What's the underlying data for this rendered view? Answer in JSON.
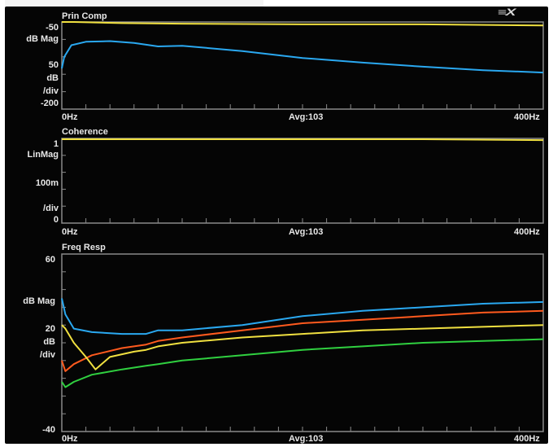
{
  "header": {
    "logo": "≡X"
  },
  "panels": [
    {
      "id": "prin-comp",
      "title": "Prin Comp",
      "y_labels": {
        "top": "-50",
        "unit": "dB Mag",
        "ref": "50",
        "db": "dB",
        "div": "/div",
        "bottom": "-200"
      },
      "x_labels": {
        "left": "0Hz",
        "center": "Avg:103",
        "right": "400Hz"
      }
    },
    {
      "id": "coherence",
      "title": "Coherence",
      "y_labels": {
        "top": "1",
        "unit": "LinMag",
        "ref": "100m",
        "div": "/div",
        "bottom": "0"
      },
      "x_labels": {
        "left": "0Hz",
        "center": "Avg:103",
        "right": "400Hz"
      }
    },
    {
      "id": "freq-resp",
      "title": "Freq Resp",
      "y_labels": {
        "top": "60",
        "unit": "dB Mag",
        "ref": "20",
        "db": "dB",
        "div": "/div",
        "bottom": "-40"
      },
      "x_labels": {
        "left": "0Hz",
        "center": "Avg:103",
        "right": "400Hz"
      }
    }
  ],
  "colors": {
    "grid": "#8a8a8a",
    "yellow": "#f0e040",
    "blue": "#2aa8f0",
    "orange": "#ff5a1e",
    "green": "#30d040",
    "label": "#e8e8e8"
  },
  "chart_data": [
    {
      "type": "line",
      "title": "Prin Comp",
      "xlabel": "",
      "ylabel": "dB Mag",
      "xlim": [
        0,
        400
      ],
      "ylim": [
        -200,
        -50
      ],
      "series": [
        {
          "color": "yellow",
          "x": [
            0,
            10,
            50,
            100,
            200,
            300,
            400
          ],
          "y": [
            -50,
            -50,
            -52,
            -53,
            -54,
            -54,
            -56
          ]
        },
        {
          "color": "blue",
          "x": [
            0,
            2,
            8,
            20,
            40,
            60,
            80,
            100,
            150,
            200,
            250,
            300,
            350,
            400
          ],
          "y": [
            -130,
            -110,
            -90,
            -84,
            -83,
            -86,
            -92,
            -91,
            -100,
            -112,
            -120,
            -127,
            -133,
            -137
          ]
        }
      ]
    },
    {
      "type": "line",
      "title": "Coherence",
      "xlabel": "",
      "ylabel": "LinMag",
      "xlim": [
        0,
        400
      ],
      "ylim": [
        0,
        1
      ],
      "series": [
        {
          "color": "yellow",
          "x": [
            0,
            100,
            200,
            300,
            400
          ],
          "y": [
            0.99,
            0.99,
            0.99,
            0.99,
            0.98
          ]
        }
      ]
    },
    {
      "type": "line",
      "title": "Freq Resp",
      "xlabel": "",
      "ylabel": "dB Mag",
      "xlim": [
        0,
        400
      ],
      "ylim": [
        -40,
        60
      ],
      "series": [
        {
          "color": "blue",
          "x": [
            0,
            3,
            10,
            25,
            50,
            70,
            80,
            100,
            150,
            200,
            250,
            300,
            350,
            400
          ],
          "y": [
            35,
            26,
            18,
            16,
            15,
            15,
            17,
            17,
            20,
            25,
            28,
            30,
            32,
            33
          ]
        },
        {
          "color": "orange",
          "x": [
            0,
            3,
            10,
            25,
            50,
            70,
            80,
            100,
            150,
            200,
            250,
            300,
            350,
            400
          ],
          "y": [
            0,
            -6,
            -2,
            3,
            7,
            9,
            11,
            13,
            17,
            21,
            23,
            25,
            27,
            28
          ]
        },
        {
          "color": "yellow",
          "x": [
            0,
            3,
            10,
            20,
            28,
            40,
            60,
            70,
            80,
            100,
            150,
            200,
            250,
            300,
            350,
            400
          ],
          "y": [
            20,
            18,
            10,
            2,
            -5,
            2,
            5,
            6,
            8,
            10,
            13,
            15,
            17,
            18,
            19,
            20
          ]
        },
        {
          "color": "green",
          "x": [
            0,
            3,
            10,
            25,
            50,
            70,
            80,
            100,
            150,
            200,
            250,
            300,
            350,
            400
          ],
          "y": [
            -12,
            -15,
            -12,
            -8,
            -5,
            -3,
            -2,
            0,
            3,
            6,
            8,
            10,
            11,
            12
          ]
        }
      ]
    }
  ]
}
